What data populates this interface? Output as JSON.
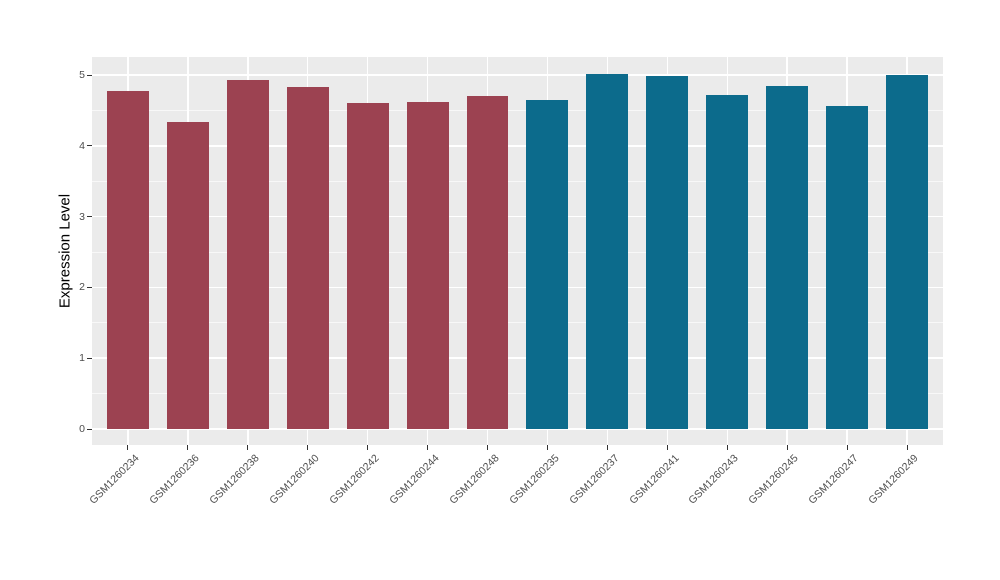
{
  "figure": {
    "background": "#FFFFFF",
    "panel_background": "#EBEBEB",
    "grid_major_color": "#FFFFFF",
    "grid_minor_color": "rgba(255,255,255,0.65)",
    "tick_mark_color": "#333333",
    "tick_label_color": "#4D4D4D",
    "axis_title_color": "#000000"
  },
  "chart_data": {
    "type": "bar",
    "title": "",
    "xlabel": "",
    "ylabel": "Expression Level",
    "ylim": [
      -0.23,
      5.25
    ],
    "yticks": [
      0,
      1,
      2,
      3,
      4,
      5
    ],
    "minor_gridlines": [
      0.5,
      1.5,
      2.5,
      3.5,
      4.5
    ],
    "grid": "major and minor horizontal white lines, vertical major lines at category centers, on gray panel",
    "legend": "none",
    "x_label_rotation_deg": 45,
    "palette": {
      "maroon": "#9C4251",
      "teal": "#0C6B8C"
    },
    "categories": [
      "GSM1260234",
      "GSM1260236",
      "GSM1260238",
      "GSM1260240",
      "GSM1260242",
      "GSM1260244",
      "GSM1260248",
      "GSM1260235",
      "GSM1260237",
      "GSM1260241",
      "GSM1260243",
      "GSM1260245",
      "GSM1260247",
      "GSM1260249"
    ],
    "values": [
      4.77,
      4.33,
      4.93,
      4.83,
      4.6,
      4.62,
      4.7,
      4.65,
      5.01,
      4.99,
      4.72,
      4.85,
      4.56,
      5.0
    ],
    "bar_colors": [
      "#9C4251",
      "#9C4251",
      "#9C4251",
      "#9C4251",
      "#9C4251",
      "#9C4251",
      "#9C4251",
      "#0C6B8C",
      "#0C6B8C",
      "#0C6B8C",
      "#0C6B8C",
      "#0C6B8C",
      "#0C6B8C",
      "#0C6B8C"
    ]
  }
}
